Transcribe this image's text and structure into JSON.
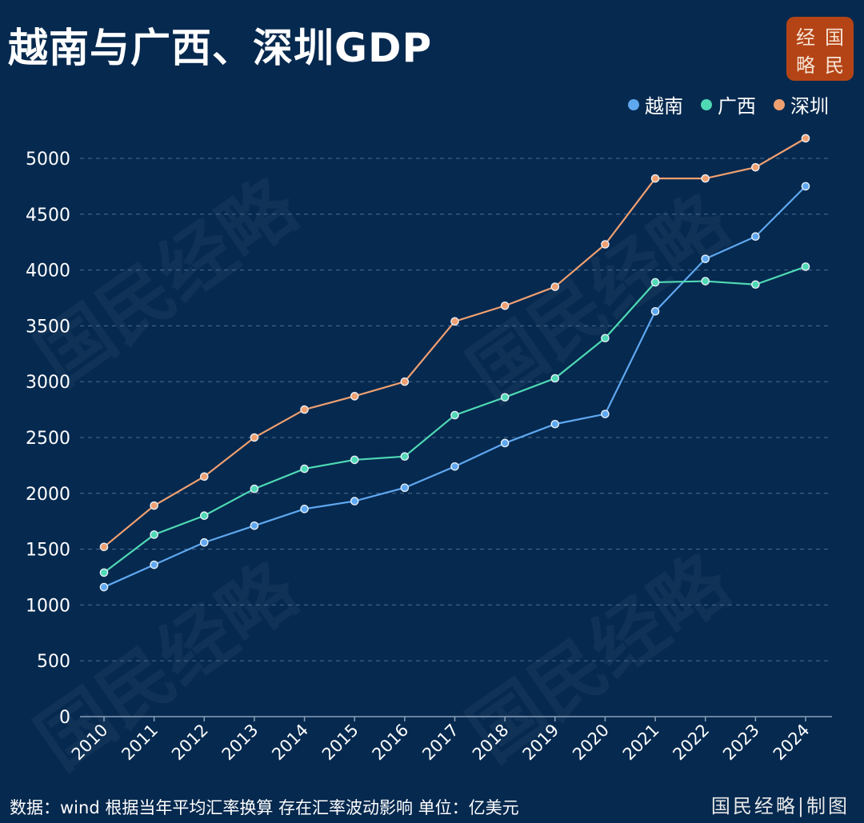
{
  "title": "越南与广西、深圳GDP",
  "logo": {
    "chars": [
      "经",
      "国",
      "略",
      "民"
    ]
  },
  "footer": {
    "source": "数据：wind  根据当年平均汇率换算 存在汇率波动影响  单位：亿美元",
    "credit": "国民经略|制图"
  },
  "watermark": "国民经略",
  "chart_data": {
    "type": "line",
    "title": "越南与广西、深圳GDP",
    "xlabel": "",
    "ylabel": "",
    "unit": "亿美元",
    "x": [
      "2010",
      "2011",
      "2012",
      "2013",
      "2014",
      "2015",
      "2016",
      "2017",
      "2018",
      "2019",
      "2020",
      "2021",
      "2022",
      "2023",
      "2024"
    ],
    "ylim": [
      0,
      5000
    ],
    "yticks": [
      0,
      500,
      1000,
      1500,
      2000,
      2500,
      3000,
      3500,
      4000,
      4500,
      5000
    ],
    "legend_position": "top-right",
    "grid": true,
    "series": [
      {
        "name": "越南",
        "color": "#5fa8f0",
        "values": [
          1160,
          1360,
          1560,
          1710,
          1860,
          1930,
          2050,
          2240,
          2450,
          2620,
          2710,
          3630,
          4100,
          4300,
          4750
        ]
      },
      {
        "name": "广西",
        "color": "#4fd9b4",
        "values": [
          1290,
          1630,
          1800,
          2040,
          2220,
          2300,
          2330,
          2700,
          2860,
          3030,
          3390,
          3890,
          3900,
          3870,
          4030
        ]
      },
      {
        "name": "深圳",
        "color": "#f0a070",
        "values": [
          1520,
          1890,
          2150,
          2500,
          2750,
          2870,
          3000,
          3540,
          3680,
          3850,
          4230,
          4820,
          4820,
          4920,
          5180
        ]
      }
    ]
  }
}
